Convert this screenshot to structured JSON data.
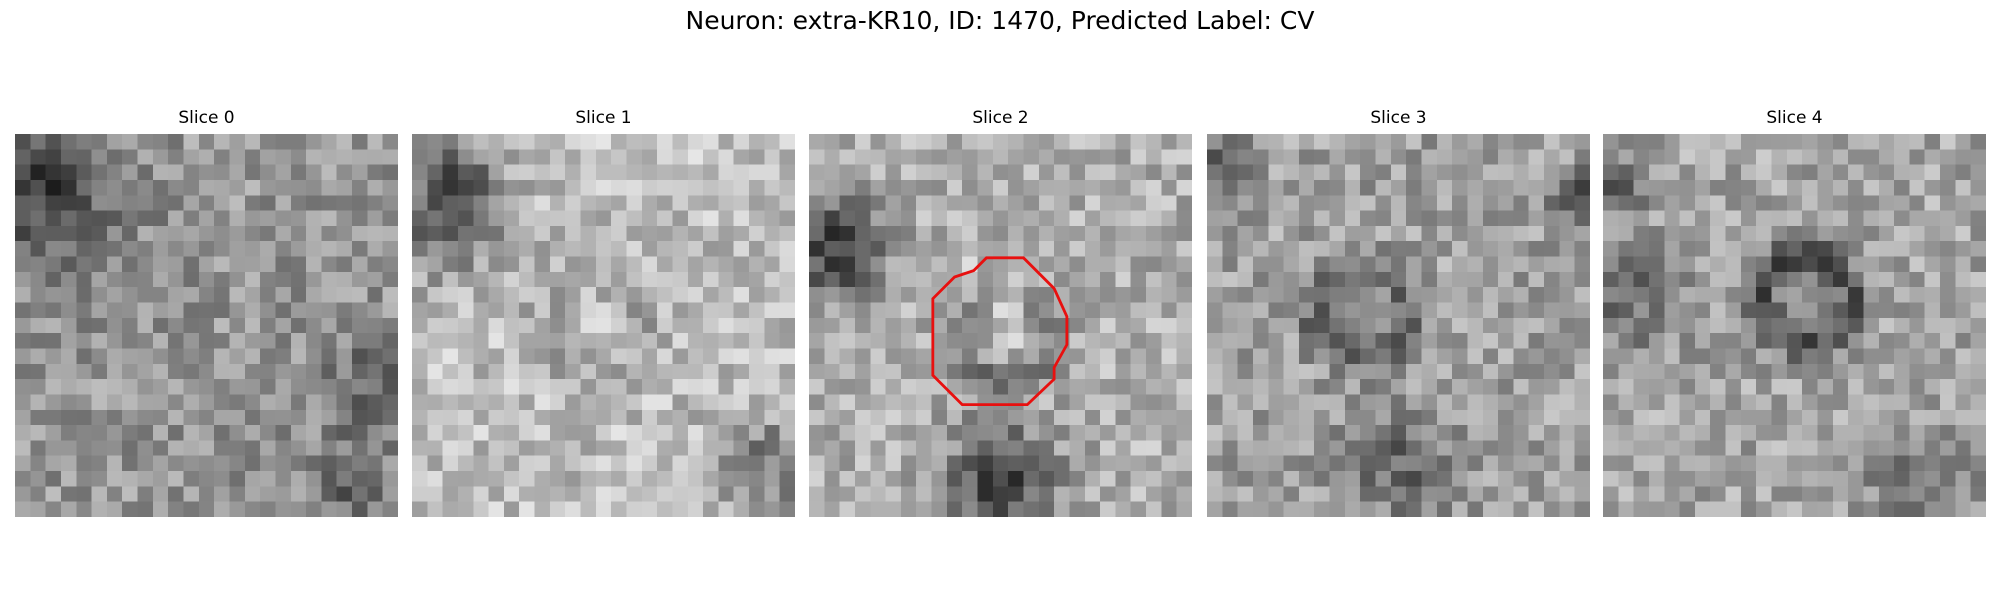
{
  "title": "Neuron: extra-KR10, ID: 1470, Predicted Label: CV",
  "panels": [
    {
      "title": "Slice 0"
    },
    {
      "title": "Slice 1"
    },
    {
      "title": "Slice 2"
    },
    {
      "title": "Slice 3"
    },
    {
      "title": "Slice 4"
    }
  ]
}
